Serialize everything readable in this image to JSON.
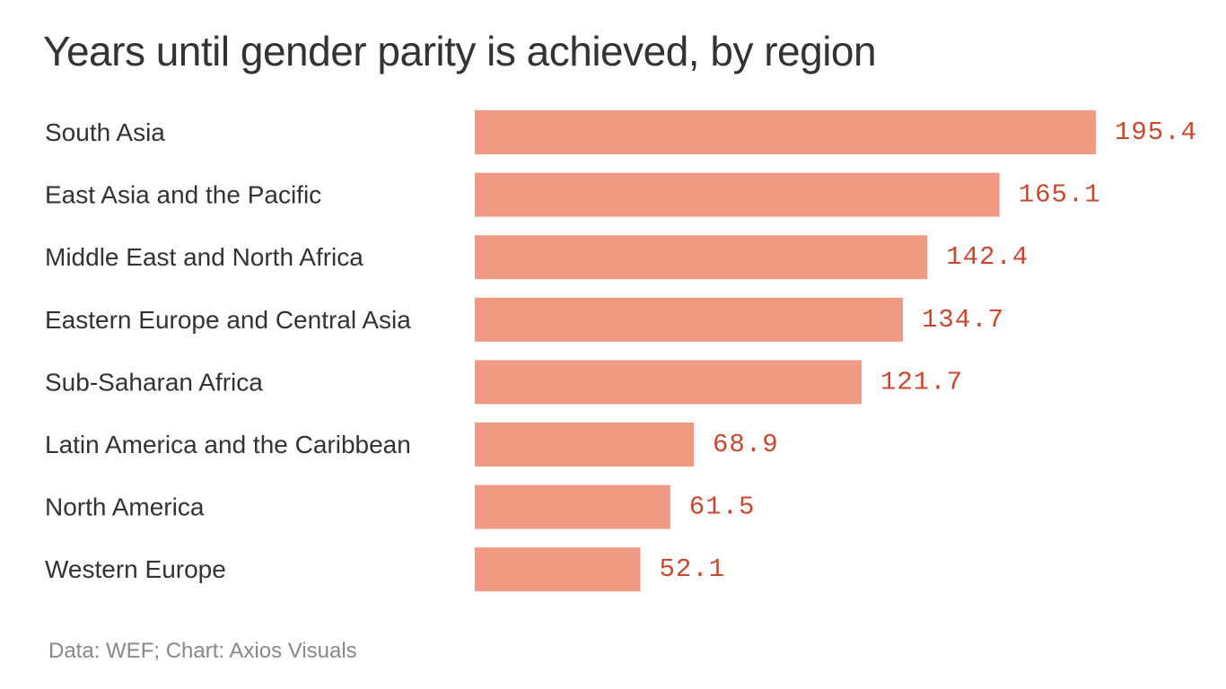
{
  "chart_data": {
    "type": "bar",
    "orientation": "horizontal",
    "title": "Years until gender parity is achieved, by region",
    "categories": [
      "South Asia",
      "East Asia and the Pacific",
      "Middle East and North Africa",
      "Eastern Europe and Central Asia",
      "Sub-Saharan Africa",
      "Latin America and the Caribbean",
      "North America",
      "Western Europe"
    ],
    "values": [
      195.4,
      165.1,
      142.4,
      134.7,
      121.7,
      68.9,
      61.5,
      52.1
    ],
    "value_labels": [
      "195.4",
      "165.1",
      "142.4",
      "134.7",
      "121.7",
      "68.9",
      "61.5",
      "52.1"
    ],
    "xlabel": "",
    "ylabel": "",
    "xlim": [
      0,
      195.4
    ],
    "grid": false,
    "legend": "none",
    "bar_color": "#f09a84",
    "value_label_color": "#c8472e"
  },
  "footer": {
    "source": "Data: WEF; Chart: Axios Visuals"
  }
}
